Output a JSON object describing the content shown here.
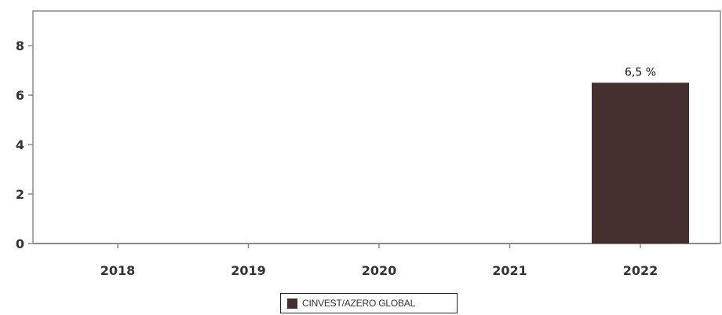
{
  "chart_data": {
    "type": "bar",
    "categories": [
      "2018",
      "2019",
      "2020",
      "2021",
      "2022"
    ],
    "series": [
      {
        "name": "CINVEST/AZERO GLOBAL",
        "values": [
          null,
          null,
          null,
          null,
          6.5
        ],
        "data_labels": [
          "",
          "",
          "",
          "",
          "6,5 %"
        ],
        "color": "#45302f"
      }
    ],
    "title": "",
    "xlabel": "",
    "ylabel": "",
    "ylim": [
      0,
      9.4
    ],
    "yticks": [
      0,
      2,
      4,
      6,
      8
    ],
    "grid": false,
    "legend": "bottom-center"
  }
}
